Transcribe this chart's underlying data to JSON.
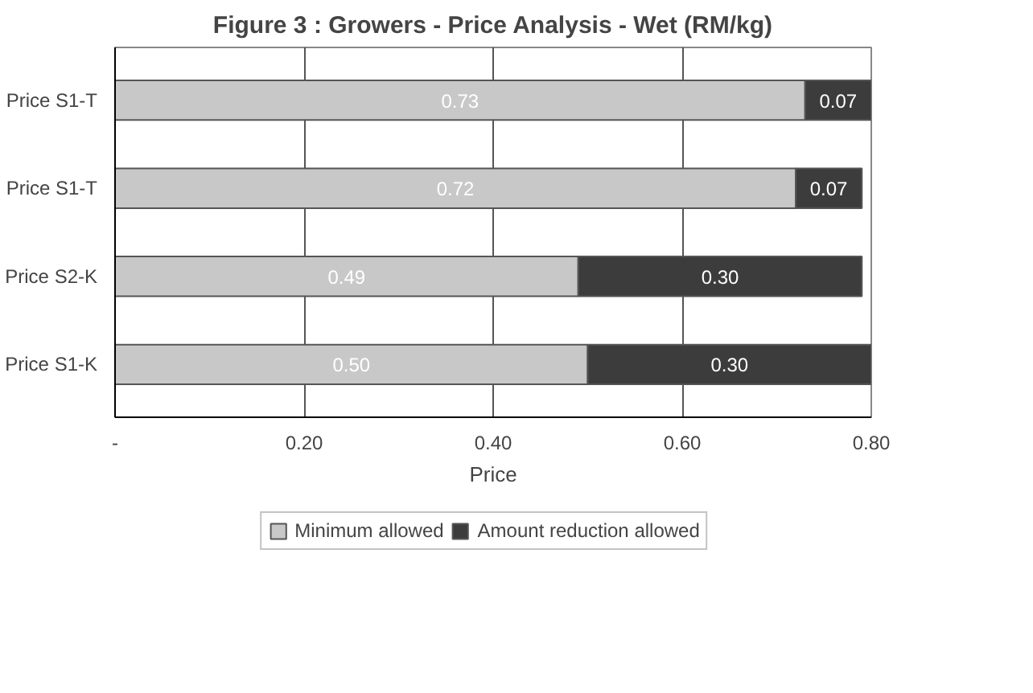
{
  "chart_data": {
    "type": "bar",
    "orientation": "horizontal",
    "stacked": true,
    "title": "Figure 3 : Growers - Price Analysis - Wet (RM/kg)",
    "xlabel": "Price",
    "categories": [
      "Price S1-T",
      "Price S1-T",
      "Price S2-K",
      "Price S1-K"
    ],
    "series": [
      {
        "name": "Minimum allowed",
        "color": "#c8c8c8",
        "values": [
          0.73,
          0.72,
          0.49,
          0.5
        ],
        "value_labels": [
          "0.73",
          "0.72",
          "0.49",
          "0.50"
        ]
      },
      {
        "name": "Amount reduction allowed",
        "color": "#3c3c3c",
        "values": [
          0.07,
          0.07,
          0.3,
          0.3
        ],
        "value_labels": [
          "0.07",
          "0.07",
          "0.30",
          "0.30"
        ]
      }
    ],
    "xlim": [
      0,
      0.8
    ],
    "xticks": [
      {
        "value": 0,
        "label": "-"
      },
      {
        "value": 0.2,
        "label": "0.20"
      },
      {
        "value": 0.4,
        "label": "0.40"
      },
      {
        "value": 0.6,
        "label": "0.60"
      },
      {
        "value": 0.8,
        "label": "0.80"
      }
    ],
    "grid": "x",
    "legend": "bottom",
    "data_labels": true
  }
}
